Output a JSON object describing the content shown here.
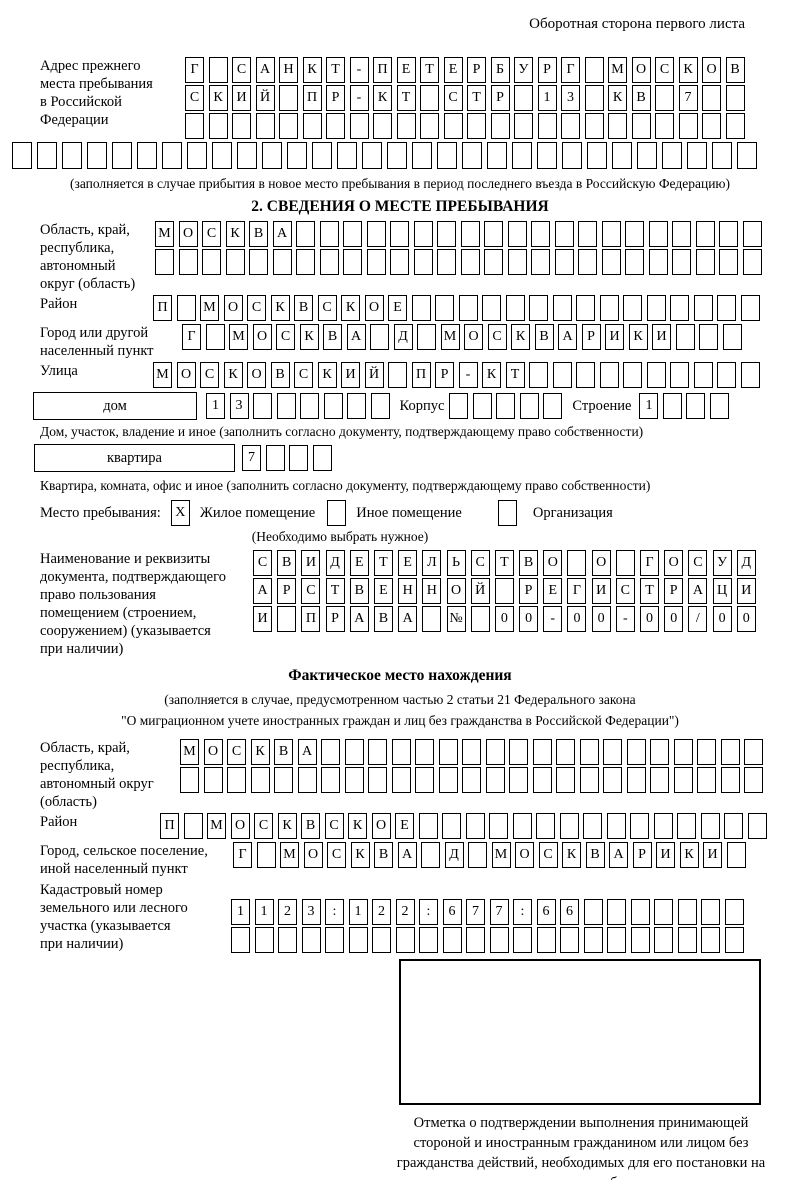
{
  "page": {
    "side_note": "Оборотная сторона первого листа"
  },
  "prev_address": {
    "label_lines": [
      "Адрес прежнего",
      "места пребывания",
      "в Российской",
      "Федерации"
    ],
    "row1": "Г САНКТ-ПЕТЕРБУРГ МОСКОВ",
    "row2": "СКИЙ ПР-КТ СТР 13 КВ 7",
    "row3": "",
    "row4": "",
    "note": "(заполняется в случае прибытия в новое место пребывания в период последнего въезда в Российскую Федерацию)"
  },
  "section2": {
    "title": "2. СВЕДЕНИЯ О МЕСТЕ ПРЕБЫВАНИЯ",
    "region": {
      "label_lines": [
        "Область, край,",
        "республика,",
        "автономный",
        "округ (область)"
      ],
      "row1": "МОСКВА",
      "row2": ""
    },
    "district": {
      "label": "Район",
      "row": "П МОСКВСКОЕ"
    },
    "city": {
      "label_lines": [
        "Город или другой",
        "населенный пункт"
      ],
      "row": "Г МОСКВА Д МОСКВАРИКИ"
    },
    "street": {
      "label": "Улица",
      "row": "МОСКОВСКИЙ ПР-КТ"
    },
    "house": {
      "box": "дом",
      "cells": "13",
      "korpus": "Корпус",
      "korpus_cells": "",
      "stroenie": "Строение",
      "stroenie_cells": "1"
    },
    "house_note": "Дом, участок, владение и иное (заполнить согласно документу, подтверждающему право собственности)",
    "apartment": {
      "box": "квартира",
      "cells": "7"
    },
    "apartment_note": "Квартира, комната, офис и иное (заполнить согласно документу, подтверждающему право собственности)",
    "stay": {
      "label": "Место пребывания:",
      "opt1": "Жилое помещение",
      "opt1_mark": "X",
      "opt2": "Иное помещение",
      "opt2_mark": "",
      "opt3": "Организация",
      "opt3_mark": "",
      "note": "(Необходимо выбрать нужное)"
    },
    "document": {
      "label_lines": [
        "Наименование и реквизиты",
        "документа, подтверждающего",
        "право пользования",
        "помещением (строением,",
        "сооружением) (указывается",
        "при наличии)"
      ],
      "row1": "СВИДЕТЕЛЬСТВО О ГОСУД",
      "row2": "АРСТВЕННОЙ РЕГИСТРАЦИ",
      "row3": "И ПРАВА № 00-00-00/000"
    }
  },
  "actual": {
    "title": "Фактическое место нахождения",
    "note1": "(заполняется в случае, предусмотренном частью 2 статьи 21 Федерального закона",
    "note2": "\"О миграционном учете иностранных граждан и лиц без гражданства в Российской Федерации\")",
    "region": {
      "label_lines": [
        "Область, край,",
        "республика,",
        "автономный округ",
        "(область)"
      ],
      "row1": "МОСКВА",
      "row2": ""
    },
    "district": {
      "label": "Район",
      "row": "П МОСКВСКОЕ"
    },
    "city": {
      "label_lines": [
        "Город, сельское поселение,",
        "иной населенный пункт"
      ],
      "row": "Г МОСКВА Д МОСКВАРИКИ"
    },
    "cadastral": {
      "label_lines": [
        "Кадастровый номер",
        "земельного или лесного",
        "участка (указывается",
        "при наличии)"
      ],
      "row1": "1123:122:677:66",
      "row2": ""
    },
    "stamp_caption": "Отметка о подтверждении выполнения принимающей стороной и иностранным гражданином или лицом без гражданства действий, необходимых для его постановки на учет по месту пребывания"
  }
}
